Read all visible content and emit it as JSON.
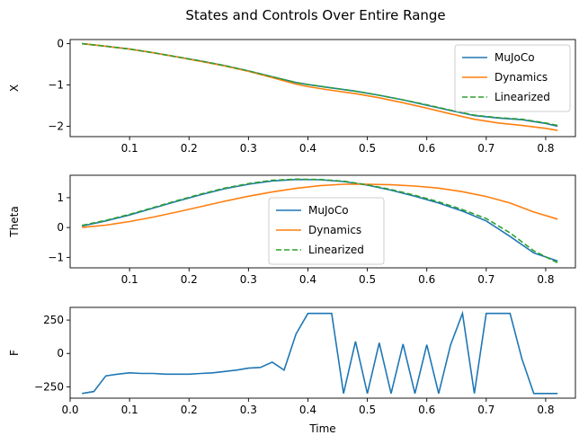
{
  "title": "States and Controls Over Entire Range",
  "colors": {
    "mujoco": "#1f77b4",
    "dynamics": "#ff7f0e",
    "linearized": "#2ca02c"
  },
  "chart_data": [
    {
      "type": "line",
      "ylabel": "X",
      "xlabel": "",
      "xlim": [
        -0.0,
        0.85
      ],
      "ylim": [
        -2.25,
        0.1
      ],
      "xticks": [
        0.1,
        0.2,
        0.3,
        0.4,
        0.5,
        0.6,
        0.7,
        0.8
      ],
      "xtick_labels": [
        "0.1",
        "0.2",
        "0.3",
        "0.4",
        "0.5",
        "0.6",
        "0.7",
        "0.8"
      ],
      "yticks": [
        0,
        -1,
        -2
      ],
      "ytick_labels": [
        "0",
        "−1",
        "−2"
      ],
      "legend": {
        "position": "upper-right",
        "entries": [
          "MuJoCo",
          "Dynamics",
          "Linearized"
        ]
      },
      "x": [
        0.02,
        0.06,
        0.1,
        0.14,
        0.18,
        0.22,
        0.26,
        0.3,
        0.34,
        0.38,
        0.4,
        0.44,
        0.48,
        0.52,
        0.56,
        0.6,
        0.64,
        0.68,
        0.72,
        0.76,
        0.8,
        0.82
      ],
      "series": [
        {
          "name": "MuJoCo",
          "style": "solid",
          "values": [
            0.0,
            -0.06,
            -0.13,
            -0.22,
            -0.32,
            -0.42,
            -0.53,
            -0.66,
            -0.8,
            -0.94,
            -0.99,
            -1.07,
            -1.15,
            -1.25,
            -1.36,
            -1.49,
            -1.62,
            -1.74,
            -1.8,
            -1.84,
            -1.93,
            -2.0
          ]
        },
        {
          "name": "Dynamics",
          "style": "solid",
          "values": [
            0.0,
            -0.06,
            -0.13,
            -0.22,
            -0.32,
            -0.43,
            -0.54,
            -0.67,
            -0.82,
            -0.98,
            -1.04,
            -1.13,
            -1.21,
            -1.31,
            -1.43,
            -1.56,
            -1.7,
            -1.83,
            -1.92,
            -1.98,
            -2.05,
            -2.1
          ]
        },
        {
          "name": "Linearized",
          "style": "dashed",
          "values": [
            0.0,
            -0.06,
            -0.13,
            -0.22,
            -0.32,
            -0.42,
            -0.53,
            -0.66,
            -0.8,
            -0.94,
            -0.99,
            -1.07,
            -1.15,
            -1.25,
            -1.36,
            -1.48,
            -1.61,
            -1.73,
            -1.79,
            -1.83,
            -1.92,
            -1.98
          ]
        }
      ]
    },
    {
      "type": "line",
      "ylabel": "Theta",
      "xlabel": "",
      "xlim": [
        -0.0,
        0.85
      ],
      "ylim": [
        -1.35,
        1.75
      ],
      "xticks": [
        0.1,
        0.2,
        0.3,
        0.4,
        0.5,
        0.6,
        0.7,
        0.8
      ],
      "xtick_labels": [
        "0.1",
        "0.2",
        "0.3",
        "0.4",
        "0.5",
        "0.6",
        "0.7",
        "0.8"
      ],
      "yticks": [
        1,
        0,
        -1
      ],
      "ytick_labels": [
        "1",
        "0",
        "−1"
      ],
      "legend": {
        "position": "lower-center",
        "entries": [
          "MuJoCo",
          "Dynamics",
          "Linearized"
        ]
      },
      "x": [
        0.02,
        0.06,
        0.1,
        0.14,
        0.18,
        0.22,
        0.26,
        0.3,
        0.34,
        0.38,
        0.42,
        0.46,
        0.5,
        0.54,
        0.58,
        0.62,
        0.66,
        0.7,
        0.74,
        0.78,
        0.82
      ],
      "series": [
        {
          "name": "MuJoCo",
          "style": "solid",
          "values": [
            0.05,
            0.22,
            0.42,
            0.65,
            0.88,
            1.1,
            1.3,
            1.45,
            1.56,
            1.61,
            1.6,
            1.54,
            1.42,
            1.25,
            1.05,
            0.82,
            0.55,
            0.22,
            -0.3,
            -0.85,
            -1.12
          ]
        },
        {
          "name": "Dynamics",
          "style": "solid",
          "values": [
            0.0,
            0.08,
            0.2,
            0.35,
            0.52,
            0.7,
            0.88,
            1.05,
            1.19,
            1.31,
            1.4,
            1.45,
            1.45,
            1.43,
            1.39,
            1.32,
            1.2,
            1.04,
            0.82,
            0.52,
            0.28
          ]
        },
        {
          "name": "Linearized",
          "style": "dashed",
          "values": [
            0.07,
            0.24,
            0.44,
            0.67,
            0.9,
            1.12,
            1.32,
            1.47,
            1.58,
            1.62,
            1.61,
            1.55,
            1.43,
            1.27,
            1.08,
            0.86,
            0.6,
            0.3,
            -0.18,
            -0.78,
            -1.18
          ]
        }
      ]
    },
    {
      "type": "line",
      "ylabel": "F",
      "xlabel": "Time",
      "xlim": [
        -0.0,
        0.85
      ],
      "ylim": [
        -335,
        345
      ],
      "xticks": [
        0.0,
        0.1,
        0.2,
        0.3,
        0.4,
        0.5,
        0.6,
        0.7,
        0.8
      ],
      "xtick_labels": [
        "0.0",
        "0.1",
        "0.2",
        "0.3",
        "0.4",
        "0.5",
        "0.6",
        "0.7",
        "0.8"
      ],
      "yticks": [
        250,
        0,
        -250
      ],
      "ytick_labels": [
        "250",
        "0",
        "−250"
      ],
      "x": [
        0.02,
        0.04,
        0.06,
        0.08,
        0.1,
        0.12,
        0.14,
        0.16,
        0.18,
        0.2,
        0.22,
        0.24,
        0.26,
        0.28,
        0.3,
        0.32,
        0.34,
        0.36,
        0.38,
        0.4,
        0.42,
        0.44,
        0.46,
        0.48,
        0.5,
        0.52,
        0.54,
        0.56,
        0.58,
        0.6,
        0.62,
        0.64,
        0.66,
        0.68,
        0.7,
        0.72,
        0.74,
        0.76,
        0.78,
        0.8,
        0.82
      ],
      "series": [
        {
          "name": "F",
          "style": "solid",
          "values": [
            -300,
            -285,
            -168,
            -155,
            -145,
            -150,
            -150,
            -155,
            -155,
            -155,
            -150,
            -145,
            -135,
            -125,
            -110,
            -105,
            -65,
            -125,
            145,
            300,
            300,
            300,
            -300,
            90,
            -300,
            80,
            -300,
            70,
            -300,
            65,
            -300,
            65,
            300,
            -300,
            300,
            300,
            300,
            -40,
            -300,
            -300,
            -300
          ]
        }
      ]
    }
  ]
}
